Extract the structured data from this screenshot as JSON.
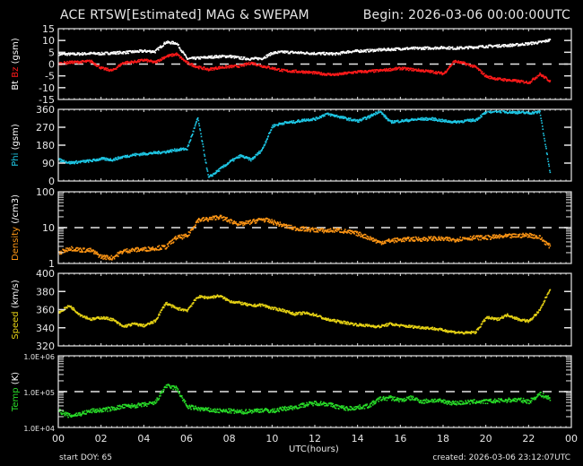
{
  "header": {
    "title": "ACE RTSW[Estimated] MAG & SWEPAM",
    "begin": "Begin: 2026-03-06 00:00:00UTC"
  },
  "footer": {
    "start_doy": "start DOY:  65",
    "created": "created: 2026-03-06 23:12:07UTC",
    "xlabel": "UTC(hours)"
  },
  "chart_data": [
    {
      "type": "line",
      "title": "Magnetic field Bt / Bz (gsm)",
      "ylabel": "Bt Bz (gsm)",
      "ylim": [
        -15,
        15
      ],
      "yticks": [
        "15",
        "10",
        "5",
        "0",
        "-5",
        "-10",
        "-15"
      ],
      "ref_line": 0,
      "x": [
        0,
        0.5,
        1,
        1.5,
        2,
        2.5,
        3,
        3.5,
        4,
        4.5,
        5,
        5.5,
        6,
        6.5,
        7,
        7.5,
        8,
        8.5,
        9,
        9.5,
        10,
        10.5,
        11,
        11.5,
        12,
        12.5,
        13,
        13.5,
        14,
        14.5,
        15,
        15.5,
        16,
        16.5,
        17,
        17.5,
        18,
        18.5,
        19,
        19.5,
        20,
        20.5,
        21,
        21.5,
        22,
        22.5,
        23
      ],
      "series": [
        {
          "name": "Bt",
          "color": "#ffffff",
          "values": [
            4.5,
            4.5,
            4.6,
            4.8,
            4.7,
            5.0,
            5.2,
            5.5,
            5.8,
            5.6,
            9.5,
            9.2,
            2.5,
            2.8,
            3.2,
            3.5,
            3.6,
            2.8,
            2.5,
            2.7,
            5.0,
            5.4,
            5.2,
            5.0,
            4.8,
            4.7,
            4.6,
            5.5,
            5.8,
            6.0,
            6.3,
            6.5,
            6.8,
            6.9,
            7.0,
            7.1,
            7.3,
            7.0,
            7.2,
            7.5,
            7.8,
            8.0,
            8.2,
            8.5,
            9.0,
            9.5,
            10.5
          ]
        },
        {
          "name": "Bz",
          "color": "#ff1a1a",
          "values": [
            0.5,
            1.0,
            1.2,
            1.5,
            -1.5,
            -2.5,
            0.8,
            1.2,
            2.0,
            1.0,
            3.5,
            4.5,
            0.8,
            -1.0,
            -2.0,
            -1.2,
            -0.8,
            -0.5,
            0.8,
            -0.5,
            -1.5,
            -2.5,
            -2.8,
            -3.0,
            -3.5,
            -4.0,
            -4.2,
            -3.5,
            -3.0,
            -2.8,
            -2.5,
            -2.0,
            -1.5,
            -2.0,
            -2.5,
            -3.0,
            -3.8,
            1.5,
            0.5,
            -1.0,
            -5.0,
            -6.0,
            -6.5,
            -7.0,
            -7.5,
            -4.0,
            -7.0
          ]
        }
      ]
    },
    {
      "type": "scatter",
      "title": "Phi (gsm)",
      "ylabel": "Phi (gsm)",
      "ylim": [
        0,
        360
      ],
      "yticks": [
        "360",
        "270",
        "180",
        "90",
        "0"
      ],
      "x": [
        0,
        0.5,
        1,
        1.5,
        2,
        2.5,
        3,
        3.5,
        4,
        4.5,
        5,
        5.5,
        6,
        6.5,
        7,
        7.5,
        8,
        8.5,
        9,
        9.5,
        10,
        10.5,
        11,
        11.5,
        12,
        12.5,
        13,
        13.5,
        14,
        14.5,
        15,
        15.5,
        16,
        16.5,
        17,
        17.5,
        18,
        18.5,
        19,
        19.5,
        20,
        20.5,
        21,
        21.5,
        22,
        22.5,
        23
      ],
      "series": [
        {
          "name": "Phi",
          "color": "#1ec8e6",
          "values": [
            110,
            95,
            100,
            105,
            115,
            110,
            125,
            135,
            140,
            145,
            150,
            160,
            165,
            320,
            20,
            60,
            100,
            130,
            110,
            160,
            280,
            295,
            300,
            310,
            315,
            340,
            330,
            315,
            305,
            325,
            355,
            300,
            305,
            310,
            315,
            315,
            305,
            300,
            305,
            310,
            350,
            355,
            350,
            348,
            345,
            350,
            30
          ]
        }
      ]
    },
    {
      "type": "scatter",
      "title": "Density (/cm3)",
      "ylabel": "Density (/cm3)",
      "yscale": "log",
      "ylim": [
        1,
        100
      ],
      "yticks": [
        "100",
        "10",
        "1"
      ],
      "ref_line": 10,
      "x": [
        0,
        0.5,
        1,
        1.5,
        2,
        2.5,
        3,
        3.5,
        4,
        4.5,
        5,
        5.5,
        6,
        6.5,
        7,
        7.5,
        8,
        8.5,
        9,
        9.5,
        10,
        10.5,
        11,
        11.5,
        12,
        12.5,
        13,
        13.5,
        14,
        14.5,
        15,
        15.5,
        16,
        16.5,
        17,
        17.5,
        18,
        18.5,
        19,
        19.5,
        20,
        20.5,
        21,
        21.5,
        22,
        22.5,
        23
      ],
      "series": [
        {
          "name": "Density",
          "color": "#ff9614",
          "values": [
            2.0,
            2.8,
            2.5,
            2.4,
            1.6,
            1.5,
            2.3,
            2.5,
            2.6,
            2.8,
            3.0,
            5.5,
            6.0,
            17,
            18,
            21,
            16,
            13,
            15,
            18,
            15,
            12,
            10,
            9.5,
            9,
            8.5,
            9,
            8,
            7,
            5.5,
            4,
            4.5,
            4.8,
            5,
            5,
            5.2,
            5,
            4.8,
            5.3,
            5.5,
            5.5,
            5.8,
            6,
            6.2,
            6.5,
            5.5,
            3.0
          ]
        }
      ]
    },
    {
      "type": "scatter",
      "title": "Speed (km/s)",
      "ylabel": "Speed (km/s)",
      "ylim": [
        320,
        400
      ],
      "yticks": [
        "400",
        "380",
        "360",
        "340",
        "320"
      ],
      "x": [
        0,
        0.5,
        1,
        1.5,
        2,
        2.5,
        3,
        3.5,
        4,
        4.5,
        5,
        5.5,
        6,
        6.5,
        7,
        7.5,
        8,
        8.5,
        9,
        9.5,
        10,
        10.5,
        11,
        11.5,
        12,
        12.5,
        13,
        13.5,
        14,
        14.5,
        15,
        15.5,
        16,
        16.5,
        17,
        17.5,
        18,
        18.5,
        19,
        19.5,
        20,
        20.5,
        21,
        21.5,
        22,
        22.5,
        23
      ],
      "series": [
        {
          "name": "Speed",
          "color": "#e6d214",
          "values": [
            358,
            365,
            355,
            350,
            352,
            350,
            342,
            345,
            343,
            348,
            368,
            362,
            360,
            375,
            374,
            376,
            370,
            368,
            365,
            366,
            362,
            360,
            356,
            357,
            355,
            350,
            348,
            346,
            344,
            343,
            342,
            345,
            343,
            342,
            341,
            340,
            338,
            336,
            335,
            336,
            352,
            350,
            355,
            350,
            348,
            360,
            385
          ]
        }
      ]
    },
    {
      "type": "scatter",
      "title": "Temp (K)",
      "ylabel": "Temp (K)",
      "yscale": "log",
      "ylim": [
        10000,
        1000000
      ],
      "yticks": [
        "1.0E+06",
        "1.0E+05",
        "1.0E+04"
      ],
      "ref_line": 100000,
      "x": [
        0,
        0.5,
        1,
        1.5,
        2,
        2.5,
        3,
        3.5,
        4,
        4.5,
        5,
        5.5,
        6,
        6.5,
        7,
        7.5,
        8,
        8.5,
        9,
        9.5,
        10,
        10.5,
        11,
        11.5,
        12,
        12.5,
        13,
        13.5,
        14,
        14.5,
        15,
        15.5,
        16,
        16.5,
        17,
        17.5,
        18,
        18.5,
        19,
        19.5,
        20,
        20.5,
        21,
        21.5,
        22,
        22.5,
        23
      ],
      "series": [
        {
          "name": "Temp",
          "color": "#28dc28",
          "values": [
            30000,
            22000,
            25000,
            30000,
            32000,
            35000,
            40000,
            42000,
            45000,
            50000,
            150000,
            130000,
            40000,
            35000,
            32000,
            30000,
            30000,
            28000,
            30000,
            32000,
            30000,
            35000,
            38000,
            45000,
            50000,
            48000,
            40000,
            35000,
            38000,
            42000,
            65000,
            70000,
            60000,
            70000,
            55000,
            60000,
            55000,
            50000,
            52000,
            55000,
            55000,
            58000,
            60000,
            62000,
            55000,
            90000,
            65000
          ]
        }
      ]
    }
  ],
  "xaxis": {
    "ticks": [
      "00",
      "02",
      "04",
      "06",
      "08",
      "10",
      "12",
      "14",
      "16",
      "18",
      "20",
      "22",
      "00"
    ]
  },
  "ylabels": [
    {
      "parts": [
        {
          "t": "Bt ",
          "c": "#ffffff"
        },
        {
          "t": "Bz",
          "c": "#ff1a1a"
        },
        {
          "t": "  (gsm)",
          "c": "#ffffff"
        }
      ]
    },
    {
      "parts": [
        {
          "t": "Phi",
          "c": "#1ec8e6"
        },
        {
          "t": "  (gsm)",
          "c": "#ffffff"
        }
      ]
    },
    {
      "parts": [
        {
          "t": "Density",
          "c": "#ff9614"
        },
        {
          "t": "  (/cm3)",
          "c": "#ffffff"
        }
      ]
    },
    {
      "parts": [
        {
          "t": "Speed",
          "c": "#e6d214"
        },
        {
          "t": "  (km/s)",
          "c": "#ffffff"
        }
      ]
    },
    {
      "parts": [
        {
          "t": "Temp",
          "c": "#28dc28"
        },
        {
          "t": "  (K)",
          "c": "#ffffff"
        }
      ]
    }
  ]
}
